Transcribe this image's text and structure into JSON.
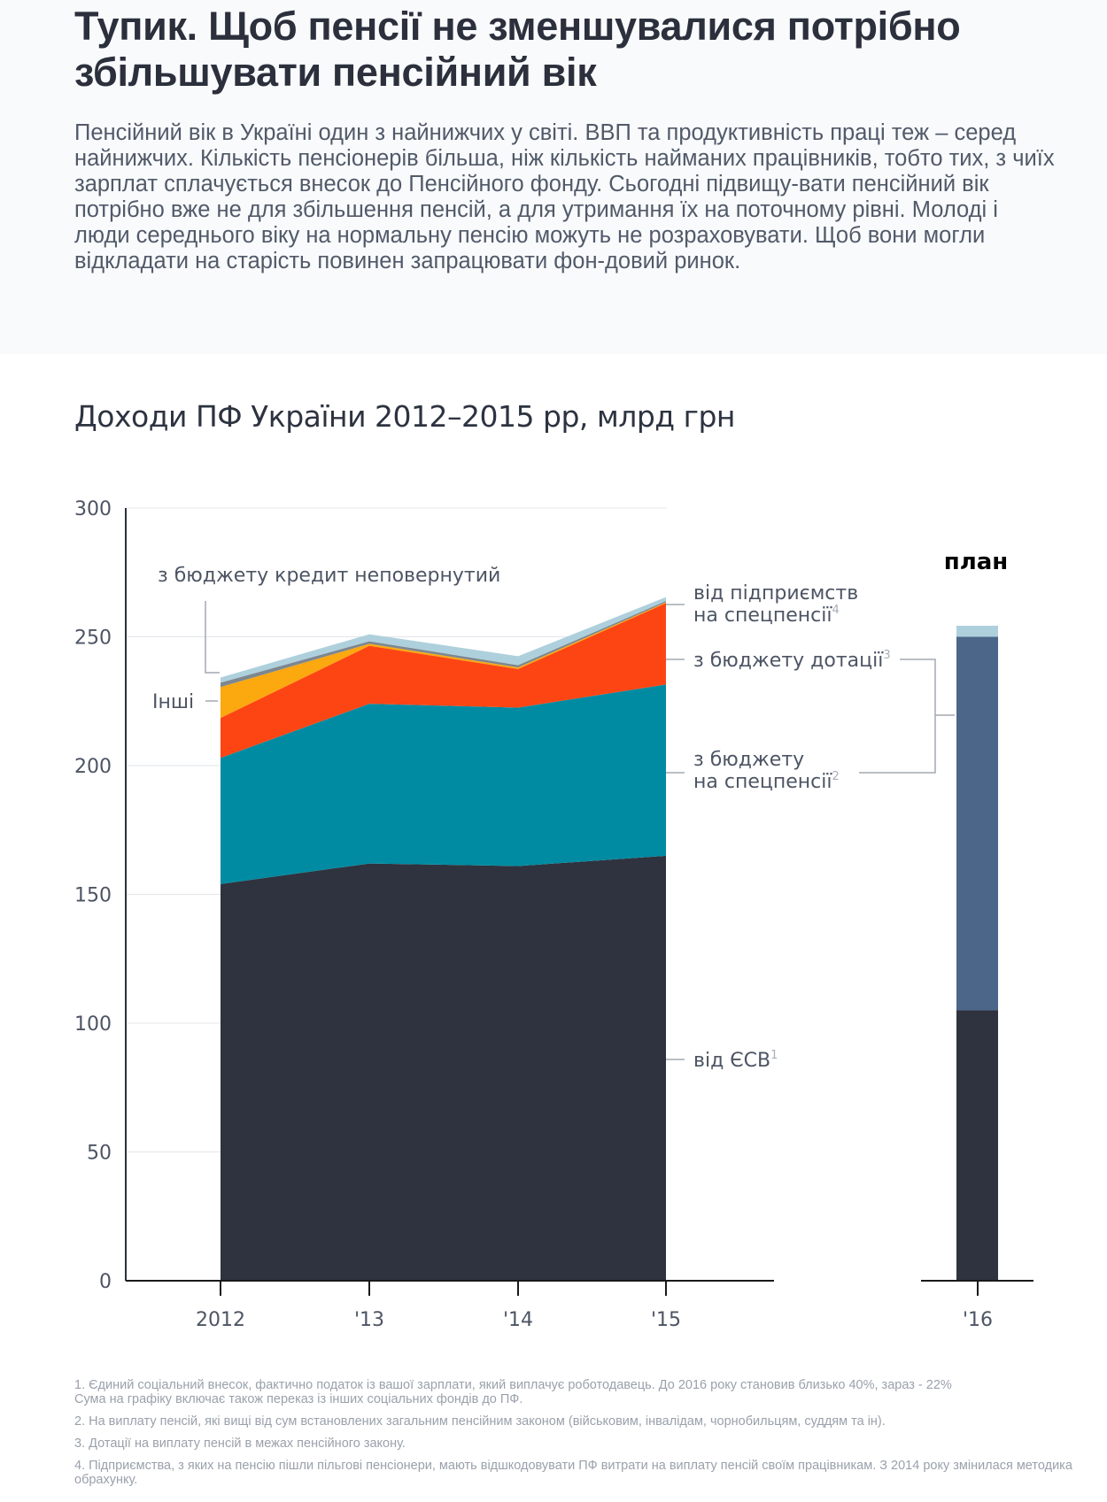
{
  "header": {
    "title": "Тупик. Щоб пенсії не зменшувалися потрібно збільшувати пенсійний вік",
    "intro": "Пенсійний вік в Україні один з найнижчих у світі. ВВП та продуктивність праці теж – серед найнижчих. Кількість пенсіонерів більша, ніж кількість найманих працівників, тобто тих, з чиїх зарплат сплачується внесок до Пенсійного фонду. Сьогодні підвищу-вати пенсійний вік потрібно вже не для збільшення пенсій, а для утримання їх на поточному рівні. Молоді і люди середнього віку на нормальну пенсію можуть не розраховувати. Щоб вони могли відкладати на старість повинен запрацювати фон-довий ринок."
  },
  "chart_data": [
    {
      "type": "area",
      "stacked": true,
      "title": "Доходи ПФ України 2012–2015 рр, млрд грн",
      "xlabel": "",
      "ylabel": "",
      "categories": [
        "2012",
        "'13",
        "'14",
        "'15"
      ],
      "ylim": [
        0,
        300
      ],
      "yticks": [
        0,
        50,
        100,
        150,
        200,
        250,
        300
      ],
      "grid": true,
      "series": [
        {
          "name": "від ЄСВ",
          "footnote": "1",
          "color": "#2f333f",
          "values": [
            154,
            162,
            161,
            165
          ]
        },
        {
          "name": "з бюджету на спецпенсії",
          "footnote": "2",
          "color": "#008ba2",
          "values": [
            49,
            62,
            61.5,
            66.5
          ]
        },
        {
          "name": "з бюджету дотації",
          "footnote": "3",
          "color": "#fd4514",
          "values": [
            15.5,
            22.5,
            15,
            31.6
          ]
        },
        {
          "name": "Інші",
          "footnote": "",
          "color": "#fca80f",
          "values": [
            12,
            0.8,
            0.6,
            0.3
          ]
        },
        {
          "name": "з бюджету кредит неповернутий",
          "footnote": "",
          "color": "#7d8790",
          "values": [
            1.7,
            1,
            0.9,
            0.5
          ]
        },
        {
          "name": "від підприємств на спецпенсії",
          "footnote": "4",
          "color": "#aed0dc",
          "values": [
            2,
            2.7,
            3.5,
            1.5
          ]
        }
      ],
      "labels": {
        "kredyt": "з бюджету кредит неповернутий",
        "inshi": "Інші",
        "pidpryiemstv_1": "від підприємств",
        "pidpryiemstv_2": "на спецпенсії",
        "pidpryiemstv_sup": "4",
        "dotacii": "з бюджету дотації",
        "dotacii_sup": "3",
        "spec_1": "з бюджету",
        "spec_2": "на спецпенсії",
        "spec_sup": "2",
        "esv": "від ЄСВ",
        "esv_sup": "1"
      }
    },
    {
      "type": "bar",
      "stacked": true,
      "title": "план",
      "categories": [
        "'16"
      ],
      "ylim": [
        0,
        300
      ],
      "series": [
        {
          "name": "від ЄСВ",
          "color": "#2f333f",
          "values": [
            105
          ]
        },
        {
          "name": "з бюджету (дотації та спецпенсії)",
          "color": "#4b6688",
          "values": [
            145
          ]
        },
        {
          "name": "від підприємств на спецпенсії",
          "color": "#aed0dc",
          "values": [
            4.3
          ]
        }
      ]
    }
  ],
  "footnotes": [
    "1. Єдиний соціальний внесок, фактично податок із вашої зарплати, який виплачує роботодавець. До 2016 року становив близько 40%, зараз - 22%",
    "Сума на графіку включає також переказ із інших соціальних фондів до ПФ.",
    "2. На виплату пенсій, які вищі від сум встановлених загальним пенсійним законом (військовим, інвалідам, чорнобильцям, суддям та ін).",
    "3.  Дотації на виплату пенсій в межах пенсійного закону.",
    "4. Підприємства, з яких на пенсію пішли пільгові пенсіонери, мають відшкодовувати ПФ витрати на виплату пенсій своїм працівникам. З 2014 року змінилася методика обрахунку."
  ]
}
